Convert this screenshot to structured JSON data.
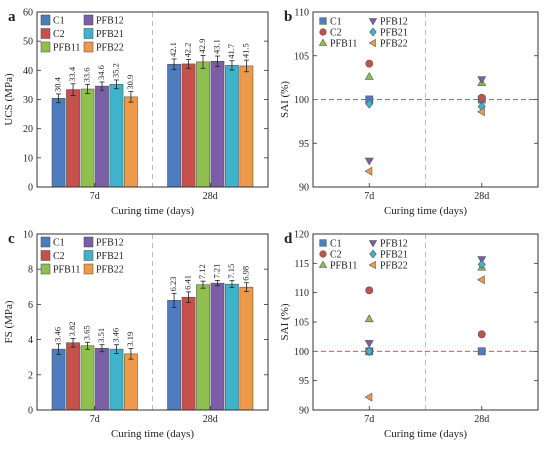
{
  "chart_data": [
    {
      "panel_label": "a",
      "type": "bar",
      "ylabel": "UCS (MPa)",
      "xlabel": "Curing time (days)",
      "ylim": [
        0,
        60
      ],
      "yticks": [
        "0",
        "10",
        "20",
        "30",
        "40",
        "50",
        "60"
      ],
      "categories": [
        "7d",
        "28d"
      ],
      "legend_placement": "top-left",
      "series": [
        {
          "name": "C1",
          "color": "#4f7bbf",
          "values": [
            30.4,
            42.1
          ],
          "errors": [
            1.5,
            1.8
          ],
          "labels": [
            "30.4",
            "42.1"
          ]
        },
        {
          "name": "C2",
          "color": "#c8504b",
          "values": [
            33.4,
            42.2
          ],
          "errors": [
            2.0,
            1.5
          ],
          "labels": [
            "33.4",
            "42.2"
          ]
        },
        {
          "name": "PFB11",
          "color": "#8fbf4f",
          "values": [
            33.6,
            42.9
          ],
          "errors": [
            1.6,
            2.2
          ],
          "labels": [
            "33.6",
            "42.9"
          ]
        },
        {
          "name": "PFB12",
          "color": "#7a5fa8",
          "values": [
            34.6,
            43.1
          ],
          "errors": [
            1.4,
            1.8
          ],
          "labels": [
            "34.6",
            "43.1"
          ]
        },
        {
          "name": "PFB21",
          "color": "#3fb3c9",
          "values": [
            35.2,
            41.7
          ],
          "errors": [
            1.5,
            1.6
          ],
          "labels": [
            "35.2",
            "41.7"
          ]
        },
        {
          "name": "PFB22",
          "color": "#ef9a4a",
          "values": [
            30.9,
            41.5
          ],
          "errors": [
            1.8,
            2.0
          ],
          "labels": [
            "30.9",
            "41.5"
          ]
        }
      ]
    },
    {
      "panel_label": "b",
      "type": "scatter",
      "ylabel": "SAI (%)",
      "xlabel": "Curing time (days)",
      "ylim": [
        90,
        110
      ],
      "yticks": [
        "90",
        "95",
        "100",
        "105",
        "110"
      ],
      "categories": [
        "7d",
        "28d"
      ],
      "reference_line": 100,
      "legend_placement": "top",
      "series": [
        {
          "name": "C1",
          "marker": "square",
          "color": "#4f7bbf",
          "values": [
            100,
            100
          ]
        },
        {
          "name": "C2",
          "marker": "circle",
          "color": "#c8504b",
          "values": [
            104.1,
            100.2
          ]
        },
        {
          "name": "PFB11",
          "marker": "triangle-up",
          "color": "#8fbf4f",
          "values": [
            102.6,
            101.9
          ]
        },
        {
          "name": "PFB12",
          "marker": "triangle-down",
          "color": "#7a5fa8",
          "values": [
            93.0,
            102.3
          ]
        },
        {
          "name": "PFB21",
          "marker": "diamond",
          "color": "#3fb3c9",
          "values": [
            99.5,
            99.2
          ]
        },
        {
          "name": "PFB22",
          "marker": "triangle-left",
          "color": "#ef9a4a",
          "values": [
            91.8,
            98.6
          ]
        }
      ]
    },
    {
      "panel_label": "c",
      "type": "bar",
      "ylabel": "FS (MPa)",
      "xlabel": "Curing time (days)",
      "ylim": [
        0,
        10
      ],
      "yticks": [
        "0",
        "2",
        "4",
        "6",
        "8",
        "10"
      ],
      "categories": [
        "7d",
        "28d"
      ],
      "legend_placement": "top-left",
      "series": [
        {
          "name": "C1",
          "color": "#4f7bbf",
          "values": [
            3.46,
            6.23
          ],
          "errors": [
            0.3,
            0.4
          ],
          "labels": [
            "3.46",
            "6.23"
          ]
        },
        {
          "name": "C2",
          "color": "#c8504b",
          "values": [
            3.82,
            6.41
          ],
          "errors": [
            0.25,
            0.3
          ],
          "labels": [
            "3.82",
            "6.41"
          ]
        },
        {
          "name": "PFB11",
          "color": "#8fbf4f",
          "values": [
            3.65,
            7.12
          ],
          "errors": [
            0.2,
            0.2
          ],
          "labels": [
            "3.65",
            "7.12"
          ]
        },
        {
          "name": "PFB12",
          "color": "#7a5fa8",
          "values": [
            3.51,
            7.21
          ],
          "errors": [
            0.2,
            0.15
          ],
          "labels": [
            "3.51",
            "7.21"
          ]
        },
        {
          "name": "PFB21",
          "color": "#3fb3c9",
          "values": [
            3.46,
            7.15
          ],
          "errors": [
            0.25,
            0.2
          ],
          "labels": [
            "3.46",
            "7.15"
          ]
        },
        {
          "name": "PFB22",
          "color": "#ef9a4a",
          "values": [
            3.19,
            6.98
          ],
          "errors": [
            0.3,
            0.25
          ],
          "labels": [
            "3.19",
            "6.98"
          ]
        }
      ]
    },
    {
      "panel_label": "d",
      "type": "scatter",
      "ylabel": "SAI (%)",
      "xlabel": "Curing time (days)",
      "ylim": [
        90,
        120
      ],
      "yticks": [
        "90",
        "95",
        "100",
        "105",
        "110",
        "115",
        "120"
      ],
      "categories": [
        "7d",
        "28d"
      ],
      "reference_line": 100,
      "legend_placement": "top",
      "series": [
        {
          "name": "C1",
          "marker": "square",
          "color": "#4f7bbf",
          "values": [
            100,
            100
          ]
        },
        {
          "name": "C2",
          "marker": "circle",
          "color": "#c8504b",
          "values": [
            110.4,
            102.9
          ]
        },
        {
          "name": "PFB11",
          "marker": "triangle-up",
          "color": "#8fbf4f",
          "values": [
            105.5,
            114.3
          ]
        },
        {
          "name": "PFB12",
          "marker": "triangle-down",
          "color": "#7a5fa8",
          "values": [
            101.4,
            115.7
          ]
        },
        {
          "name": "PFB21",
          "marker": "diamond",
          "color": "#3fb3c9",
          "values": [
            100.0,
            114.8
          ]
        },
        {
          "name": "PFB22",
          "marker": "triangle-left",
          "color": "#ef9a4a",
          "values": [
            92.2,
            112.2
          ]
        }
      ]
    }
  ]
}
